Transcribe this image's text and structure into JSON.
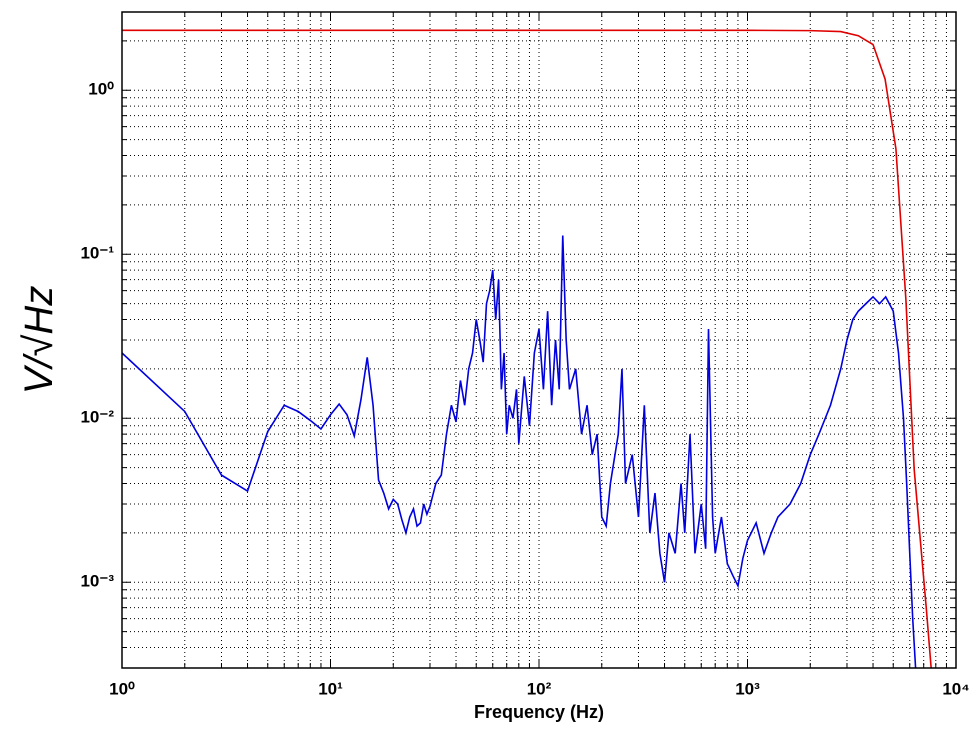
{
  "chart_data": {
    "type": "line",
    "xlabel": "Frequency (Hz)",
    "ylabel": "V/√Hz",
    "xscale": "log",
    "yscale": "log",
    "grid": true,
    "minor_grid": true,
    "xlim": [
      1,
      10000
    ],
    "ylim": [
      0.0003,
      3
    ],
    "xticks": [
      {
        "value": 1,
        "label": "10⁰"
      },
      {
        "value": 10,
        "label": "10¹"
      },
      {
        "value": 100,
        "label": "10²"
      },
      {
        "value": 1000,
        "label": "10³"
      },
      {
        "value": 10000,
        "label": "10⁴"
      }
    ],
    "yticks": [
      {
        "value": 0.001,
        "label": "10⁻³"
      },
      {
        "value": 0.01,
        "label": "10⁻²"
      },
      {
        "value": 0.1,
        "label": "10⁻¹"
      },
      {
        "value": 1,
        "label": "10⁰"
      }
    ],
    "series": [
      {
        "color": "#e00000",
        "x": [
          1,
          10,
          100,
          1000,
          2000,
          2800,
          3400,
          4000,
          4570,
          5150,
          5750,
          6300,
          6800,
          7200,
          7600
        ],
        "values": [
          2.32,
          2.32,
          2.32,
          2.32,
          2.31,
          2.28,
          2.15,
          1.9,
          1.17,
          0.44,
          0.053,
          0.0049,
          0.0016,
          0.0007,
          0.0003
        ]
      },
      {
        "color": "#0000e0",
        "x": [
          1,
          2,
          3,
          4,
          5,
          6,
          7,
          8,
          9,
          10,
          11,
          12,
          13,
          14,
          15,
          16,
          17,
          18,
          19,
          20,
          21,
          22,
          23,
          24,
          25,
          26,
          27,
          28,
          29,
          30,
          32,
          34,
          36,
          38,
          40,
          42,
          44,
          46,
          48,
          50,
          52,
          54,
          56,
          58,
          60,
          62,
          64,
          66,
          68,
          70,
          72,
          75,
          78,
          80,
          85,
          90,
          95,
          100,
          105,
          110,
          115,
          120,
          125,
          130,
          135,
          140,
          150,
          160,
          170,
          180,
          190,
          200,
          210,
          220,
          240,
          250,
          260,
          280,
          300,
          320,
          340,
          360,
          380,
          400,
          420,
          450,
          480,
          500,
          530,
          560,
          600,
          630,
          650,
          680,
          700,
          750,
          800,
          850,
          900,
          950,
          1000,
          1100,
          1200,
          1300,
          1400,
          1600,
          1800,
          2000,
          2200,
          2500,
          2800,
          3000,
          3200,
          3400,
          3700,
          4000,
          4300,
          4600,
          5000,
          5300,
          5600,
          5800,
          6000,
          6200,
          6400
        ],
        "values": [
          0.025,
          0.011,
          0.0045,
          0.0036,
          0.0083,
          0.012,
          0.011,
          0.0097,
          0.0086,
          0.0105,
          0.0122,
          0.0105,
          0.0078,
          0.013,
          0.0235,
          0.012,
          0.0042,
          0.0035,
          0.0028,
          0.0032,
          0.003,
          0.0024,
          0.002,
          0.0025,
          0.0028,
          0.0022,
          0.0023,
          0.003,
          0.0026,
          0.0029,
          0.004,
          0.0045,
          0.008,
          0.012,
          0.0095,
          0.017,
          0.012,
          0.02,
          0.025,
          0.04,
          0.03,
          0.022,
          0.05,
          0.06,
          0.08,
          0.04,
          0.07,
          0.015,
          0.025,
          0.008,
          0.012,
          0.01,
          0.015,
          0.007,
          0.018,
          0.009,
          0.025,
          0.035,
          0.015,
          0.045,
          0.012,
          0.03,
          0.015,
          0.13,
          0.03,
          0.015,
          0.02,
          0.008,
          0.012,
          0.006,
          0.008,
          0.0025,
          0.0022,
          0.004,
          0.008,
          0.02,
          0.004,
          0.006,
          0.0025,
          0.012,
          0.002,
          0.0035,
          0.0015,
          0.001,
          0.002,
          0.0015,
          0.004,
          0.002,
          0.008,
          0.0015,
          0.003,
          0.0016,
          0.035,
          0.0025,
          0.0015,
          0.0025,
          0.0013,
          0.0011,
          0.00095,
          0.0014,
          0.0018,
          0.0023,
          0.0015,
          0.002,
          0.0025,
          0.003,
          0.004,
          0.006,
          0.008,
          0.012,
          0.02,
          0.03,
          0.04,
          0.045,
          0.05,
          0.055,
          0.05,
          0.055,
          0.045,
          0.025,
          0.01,
          0.004,
          0.0015,
          0.0006,
          0.0003
        ]
      }
    ]
  }
}
